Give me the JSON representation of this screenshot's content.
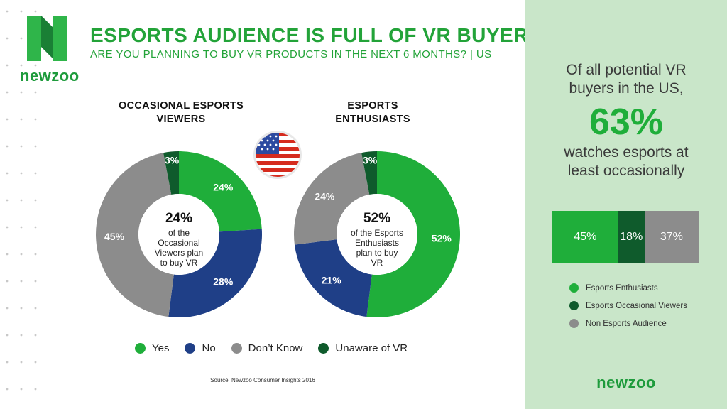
{
  "brand": {
    "name": "newzoo"
  },
  "header": {
    "title": "ESPORTS AUDIENCE IS FULL OF VR BUYERS",
    "subtitle": "ARE YOU PLANNING TO BUY VR PRODUCTS IN THE NEXT 6 MONTHS? | US"
  },
  "colors": {
    "yes": "#1fae3a",
    "no": "#1f3f87",
    "dont_know": "#8c8c8c",
    "unaware": "#0f5b2c",
    "brand_green": "#23a339"
  },
  "flag_icon": "us-flag-icon",
  "chart_data": [
    {
      "type": "pie",
      "title": "OCCASIONAL ESPORTS VIEWERS",
      "categories": [
        "Yes",
        "No",
        "Don’t Know",
        "Unaware of VR"
      ],
      "values": [
        24,
        28,
        45,
        3
      ],
      "labels": [
        "24%",
        "28%",
        "45%",
        "3%"
      ],
      "center": {
        "big": "24%",
        "lines": [
          "of the",
          "Occasional",
          "Viewers plan",
          "to buy VR"
        ]
      }
    },
    {
      "type": "pie",
      "title": "ESPORTS ENTHUSIASTS",
      "categories": [
        "Yes",
        "No",
        "Don’t Know",
        "Unaware of VR"
      ],
      "values": [
        52,
        21,
        24,
        3
      ],
      "labels": [
        "52%",
        "21%",
        "24%",
        "3%"
      ],
      "center": {
        "big": "52%",
        "lines": [
          "of the Esports",
          "Enthusiasts",
          "plan to buy",
          "VR"
        ]
      }
    },
    {
      "type": "bar",
      "orientation": "horizontal-stacked",
      "categories": [
        "Esports Enthusiasts",
        "Esports Occasional Viewers",
        "Non Esports Audience"
      ],
      "values": [
        45,
        18,
        37
      ],
      "labels": [
        "45%",
        "18%",
        "37%"
      ],
      "colors": [
        "#1fae3a",
        "#0f5b2c",
        "#8c8c8c"
      ]
    }
  ],
  "legend": [
    "Yes",
    "No",
    "Don’t Know",
    "Unaware of VR"
  ],
  "source": "Source: Newzoo Consumer Insights 2016",
  "panel": {
    "lead": [
      "Of all potential VR",
      "buyers in the US,"
    ],
    "big": "63%",
    "tail": [
      "watches esports at",
      "least occasionally"
    ],
    "legend": [
      "Esports Enthusiasts",
      "Esports Occasional Viewers",
      "Non Esports Audience"
    ]
  }
}
